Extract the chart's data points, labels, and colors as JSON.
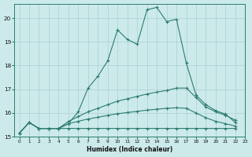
{
  "xlabel": "Humidex (Indice chaleur)",
  "background_color": "#cceaea",
  "line_color": "#2d7d6e",
  "grid_color": "#aacfcf",
  "xlim": [
    -0.5,
    23
  ],
  "ylim": [
    15.0,
    20.6
  ],
  "xticks": [
    0,
    1,
    2,
    3,
    4,
    5,
    6,
    7,
    8,
    9,
    10,
    11,
    12,
    13,
    14,
    15,
    16,
    17,
    18,
    19,
    20,
    21,
    22,
    23
  ],
  "yticks": [
    15,
    16,
    17,
    18,
    19,
    20
  ],
  "line1_x": [
    0,
    1,
    2,
    3,
    4,
    5,
    6,
    7,
    8,
    9,
    10,
    11,
    12,
    13,
    14,
    15,
    16,
    17,
    18,
    19,
    20,
    21,
    22
  ],
  "line1_y": [
    15.15,
    15.6,
    15.35,
    15.35,
    15.35,
    15.55,
    16.05,
    17.05,
    17.55,
    18.2,
    19.5,
    19.1,
    18.9,
    20.35,
    20.45,
    19.85,
    19.95,
    18.1,
    16.75,
    16.35,
    16.1,
    15.95,
    15.6
  ],
  "line2_x": [
    0,
    1,
    2,
    3,
    4,
    5,
    6,
    7,
    8,
    9,
    10,
    11,
    12,
    13,
    14,
    15,
    16,
    17,
    18,
    19,
    20,
    21,
    22
  ],
  "line2_y": [
    15.15,
    15.6,
    15.35,
    15.35,
    15.35,
    15.65,
    15.85,
    16.05,
    16.2,
    16.35,
    16.5,
    16.6,
    16.7,
    16.8,
    16.88,
    16.95,
    17.05,
    17.05,
    16.65,
    16.25,
    16.05,
    15.9,
    15.7
  ],
  "line3_x": [
    0,
    1,
    2,
    3,
    4,
    5,
    6,
    7,
    8,
    9,
    10,
    11,
    12,
    13,
    14,
    15,
    16,
    17,
    18,
    19,
    20,
    21,
    22
  ],
  "line3_y": [
    15.15,
    15.6,
    15.35,
    15.35,
    15.35,
    15.55,
    15.65,
    15.75,
    15.82,
    15.9,
    15.97,
    16.02,
    16.07,
    16.12,
    16.16,
    16.2,
    16.22,
    16.2,
    16.0,
    15.8,
    15.65,
    15.55,
    15.45
  ],
  "line4_x": [
    0,
    1,
    2,
    3,
    4,
    5,
    6,
    7,
    8,
    9,
    10,
    11,
    12,
    13,
    14,
    15,
    16,
    17,
    18,
    19,
    20,
    21,
    22
  ],
  "line4_y": [
    15.15,
    15.6,
    15.35,
    15.35,
    15.35,
    15.35,
    15.35,
    15.35,
    15.35,
    15.35,
    15.35,
    15.35,
    15.35,
    15.35,
    15.35,
    15.35,
    15.35,
    15.35,
    15.35,
    15.35,
    15.35,
    15.35,
    15.35
  ]
}
